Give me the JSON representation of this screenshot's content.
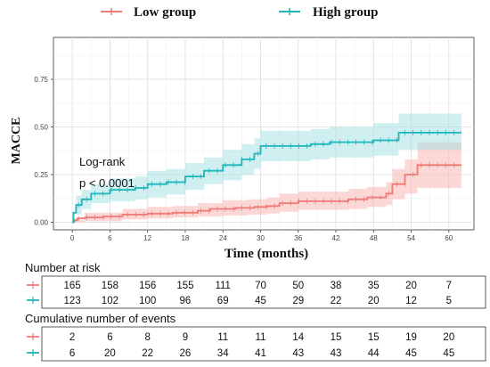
{
  "chart_data": {
    "type": "line",
    "title": "",
    "xlabel": "Time (months)",
    "ylabel": "MACCE",
    "xlim": [
      -3,
      64
    ],
    "ylim": [
      -0.04,
      0.97
    ],
    "x_ticks": [
      "0",
      "6",
      "12",
      "18",
      "24",
      "30",
      "36",
      "42",
      "48",
      "54",
      "60"
    ],
    "y_ticks": [
      "0.00",
      "0.25",
      "0.50",
      "0.75"
    ],
    "grid": true,
    "legend_position": "top",
    "annotation": {
      "line1": "Log-rank",
      "line2": "p < 0.0001"
    },
    "series": [
      {
        "name": "Low group",
        "color": "#ee7b76",
        "band_color": "#f7b6b3",
        "steps": [
          [
            0,
            0
          ],
          [
            0.3,
            0.01
          ],
          [
            0.8,
            0.02
          ],
          [
            2,
            0.025
          ],
          [
            5,
            0.03
          ],
          [
            8,
            0.04
          ],
          [
            12,
            0.045
          ],
          [
            16,
            0.05
          ],
          [
            20,
            0.06
          ],
          [
            22,
            0.07
          ],
          [
            26,
            0.075
          ],
          [
            29,
            0.08
          ],
          [
            31,
            0.085
          ],
          [
            33,
            0.1
          ],
          [
            36,
            0.11
          ],
          [
            44,
            0.12
          ],
          [
            47,
            0.13
          ],
          [
            50,
            0.15
          ],
          [
            51,
            0.2
          ],
          [
            53,
            0.25
          ],
          [
            55,
            0.3
          ],
          [
            62,
            0.3
          ]
        ],
        "ci_lower": [
          [
            0,
            0
          ],
          [
            2,
            0.005
          ],
          [
            8,
            0.015
          ],
          [
            12,
            0.02
          ],
          [
            16,
            0.025
          ],
          [
            20,
            0.03
          ],
          [
            24,
            0.035
          ],
          [
            28,
            0.04
          ],
          [
            31,
            0.045
          ],
          [
            33,
            0.055
          ],
          [
            36,
            0.065
          ],
          [
            44,
            0.07
          ],
          [
            47,
            0.08
          ],
          [
            50,
            0.09
          ],
          [
            51,
            0.12
          ],
          [
            53,
            0.15
          ],
          [
            55,
            0.18
          ],
          [
            62,
            0.18
          ]
        ],
        "ci_upper": [
          [
            0,
            0.01
          ],
          [
            2,
            0.05
          ],
          [
            8,
            0.07
          ],
          [
            12,
            0.08
          ],
          [
            16,
            0.085
          ],
          [
            20,
            0.1
          ],
          [
            24,
            0.115
          ],
          [
            28,
            0.12
          ],
          [
            31,
            0.13
          ],
          [
            33,
            0.15
          ],
          [
            36,
            0.16
          ],
          [
            44,
            0.175
          ],
          [
            47,
            0.185
          ],
          [
            50,
            0.21
          ],
          [
            51,
            0.28
          ],
          [
            53,
            0.33
          ],
          [
            55,
            0.42
          ],
          [
            62,
            0.42
          ]
        ]
      },
      {
        "name": "High group",
        "color": "#1fb5b9",
        "band_color": "#a8e1e3",
        "steps": [
          [
            0,
            0
          ],
          [
            0.2,
            0.05
          ],
          [
            0.6,
            0.09
          ],
          [
            1.5,
            0.12
          ],
          [
            3,
            0.15
          ],
          [
            6,
            0.17
          ],
          [
            10,
            0.18
          ],
          [
            12,
            0.2
          ],
          [
            15,
            0.21
          ],
          [
            18,
            0.24
          ],
          [
            21,
            0.27
          ],
          [
            24,
            0.3
          ],
          [
            27,
            0.33
          ],
          [
            29,
            0.36
          ],
          [
            30,
            0.4
          ],
          [
            38,
            0.41
          ],
          [
            41,
            0.42
          ],
          [
            48,
            0.43
          ],
          [
            52,
            0.47
          ],
          [
            62,
            0.47
          ]
        ],
        "ci_lower": [
          [
            0,
            0
          ],
          [
            0.6,
            0.04
          ],
          [
            1.5,
            0.07
          ],
          [
            3,
            0.1
          ],
          [
            6,
            0.11
          ],
          [
            10,
            0.12
          ],
          [
            12,
            0.13
          ],
          [
            15,
            0.145
          ],
          [
            18,
            0.17
          ],
          [
            21,
            0.2
          ],
          [
            24,
            0.22
          ],
          [
            27,
            0.25
          ],
          [
            29,
            0.28
          ],
          [
            30,
            0.32
          ],
          [
            38,
            0.33
          ],
          [
            41,
            0.34
          ],
          [
            48,
            0.35
          ],
          [
            52,
            0.38
          ],
          [
            62,
            0.38
          ]
        ],
        "ci_upper": [
          [
            0,
            0.02
          ],
          [
            0.6,
            0.14
          ],
          [
            1.5,
            0.17
          ],
          [
            3,
            0.2
          ],
          [
            6,
            0.23
          ],
          [
            10,
            0.24
          ],
          [
            12,
            0.27
          ],
          [
            15,
            0.28
          ],
          [
            18,
            0.31
          ],
          [
            21,
            0.34
          ],
          [
            24,
            0.38
          ],
          [
            27,
            0.41
          ],
          [
            29,
            0.44
          ],
          [
            30,
            0.48
          ],
          [
            38,
            0.49
          ],
          [
            41,
            0.5
          ],
          [
            48,
            0.52
          ],
          [
            52,
            0.57
          ],
          [
            62,
            0.57
          ]
        ]
      }
    ]
  },
  "risk_table": {
    "title": "Number at risk",
    "rows": [
      {
        "series": "Low group",
        "color": "#ee7b76",
        "values": [
          "165",
          "158",
          "156",
          "155",
          "111",
          "70",
          "50",
          "38",
          "35",
          "20",
          "7"
        ]
      },
      {
        "series": "High group",
        "color": "#1fb5b9",
        "values": [
          "123",
          "102",
          "100",
          "96",
          "69",
          "45",
          "29",
          "22",
          "20",
          "12",
          "5"
        ]
      }
    ]
  },
  "events_table": {
    "title": "Cumulative number of events",
    "rows": [
      {
        "series": "Low group",
        "color": "#ee7b76",
        "values": [
          "2",
          "6",
          "8",
          "9",
          "11",
          "11",
          "14",
          "15",
          "15",
          "19",
          "20"
        ]
      },
      {
        "series": "High group",
        "color": "#1fb5b9",
        "values": [
          "6",
          "20",
          "22",
          "26",
          "34",
          "41",
          "43",
          "43",
          "44",
          "45",
          "45"
        ]
      }
    ]
  }
}
